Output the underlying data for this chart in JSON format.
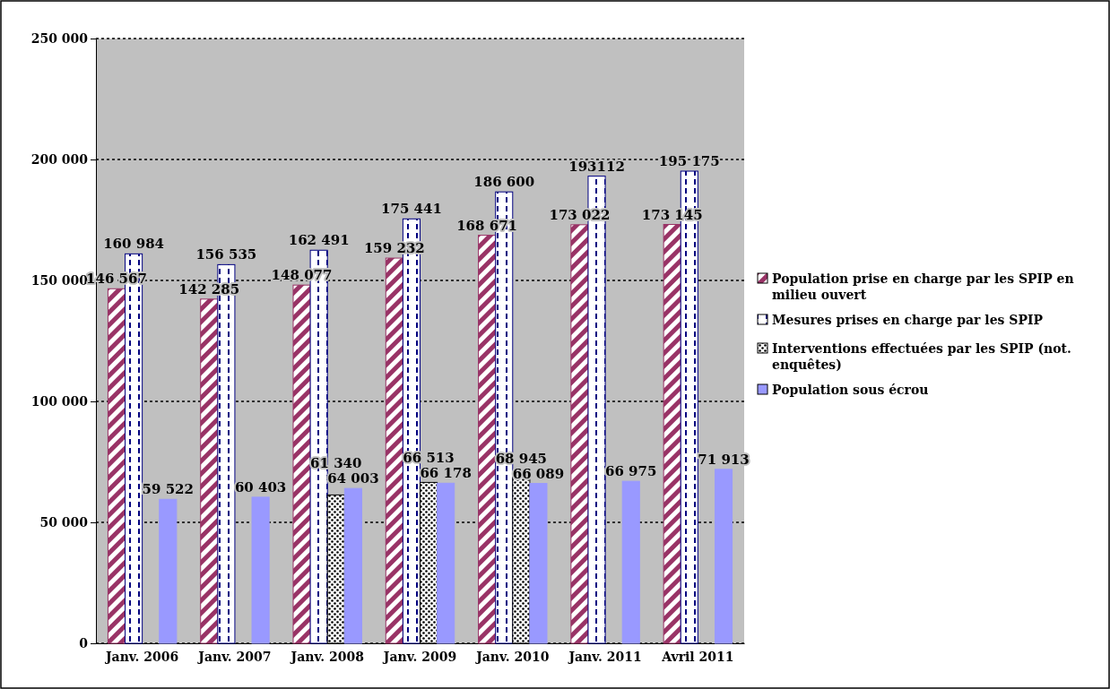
{
  "chart_data": {
    "type": "bar",
    "categories": [
      "Janv. 2006",
      "Janv. 2007",
      "Janv. 2008",
      "Janv. 2009",
      "Janv. 2010",
      "Janv. 2011",
      "Avril 2011"
    ],
    "series": [
      {
        "name": "Population prise en charge par les SPIP en milieu ouvert",
        "color": "#993366",
        "values": [
          146567,
          142285,
          148077,
          159232,
          168671,
          173022,
          173145
        ],
        "value_labels": [
          "146 567",
          "142 285",
          "148 077",
          "159 232",
          "168 671",
          "173 022",
          "173 145"
        ]
      },
      {
        "name": "Mesures prises en charge par les SPIP",
        "color": "#000080",
        "values": [
          160984,
          156535,
          162491,
          175441,
          186600,
          193112,
          195175
        ],
        "value_labels": [
          "160 984",
          "156 535",
          "162 491",
          "175 441",
          "186 600",
          "193112",
          "195 175"
        ]
      },
      {
        "name": "Interventions effectuées par les SPIP (not. enquêtes)",
        "color": "#000000",
        "values": [
          null,
          null,
          61340,
          66513,
          68945,
          null,
          null
        ],
        "value_labels": [
          null,
          null,
          "61 340",
          "66 513",
          "68 945",
          null,
          null
        ]
      },
      {
        "name": "Population sous écrou",
        "color": "#9999ff",
        "values": [
          59522,
          60403,
          64003,
          66178,
          66089,
          66975,
          71913
        ],
        "value_labels": [
          "59 522",
          "60 403",
          "64 003",
          "66 178",
          "66 089",
          "66 975",
          "71 913"
        ]
      }
    ],
    "ylim": [
      0,
      250000
    ],
    "yticks": [
      {
        "value": 0,
        "label": "0"
      },
      {
        "value": 50000,
        "label": "50 000"
      },
      {
        "value": 100000,
        "label": "100 000"
      },
      {
        "value": 150000,
        "label": "150 000"
      },
      {
        "value": 200000,
        "label": "200 000"
      },
      {
        "value": 250000,
        "label": "250 000"
      }
    ],
    "grid": "y",
    "legend": "right"
  }
}
